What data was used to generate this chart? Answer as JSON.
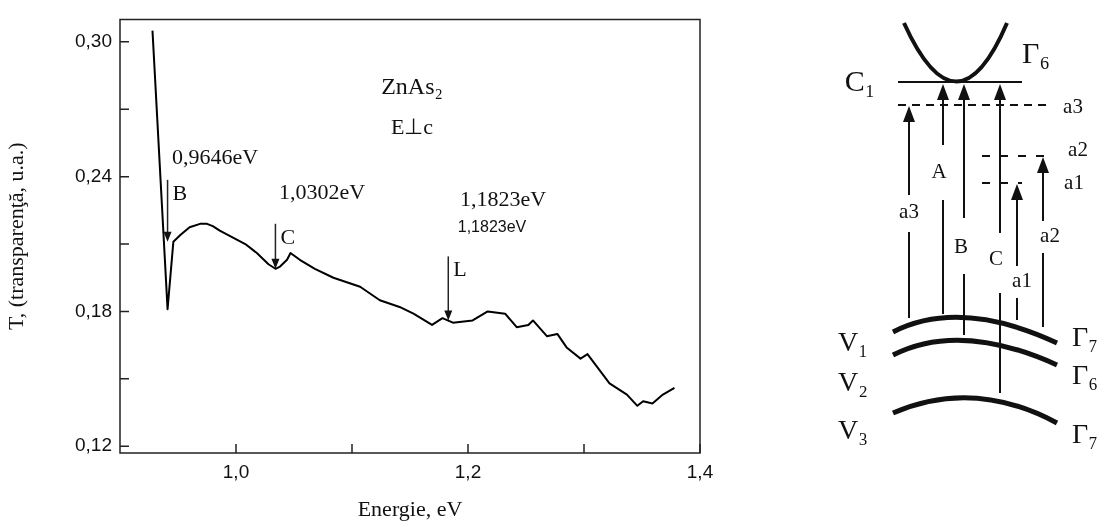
{
  "chart_data": {
    "type": "line",
    "xlabel": "Energie, eV",
    "ylabel": "T, (transparenţă, u.a.)",
    "x": [
      0.928,
      0.941,
      0.946,
      0.952,
      0.96,
      0.969,
      0.975,
      0.98,
      0.986,
      0.997,
      1.008,
      1.018,
      1.028,
      1.034,
      1.038,
      1.044,
      1.047,
      1.055,
      1.068,
      1.084,
      1.107,
      1.124,
      1.141,
      1.153,
      1.169,
      1.178,
      1.187,
      1.204,
      1.217,
      1.232,
      1.242,
      1.252,
      1.256,
      1.268,
      1.277,
      1.285,
      1.297,
      1.303,
      1.322,
      1.337,
      1.346,
      1.351,
      1.359,
      1.368,
      1.378
    ],
    "series": [
      {
        "color": "#000000",
        "values": [
          0.305,
          0.181,
          0.211,
          0.214,
          0.2175,
          0.219,
          0.219,
          0.218,
          0.216,
          0.213,
          0.21,
          0.206,
          0.201,
          0.199,
          0.2,
          0.203,
          0.206,
          0.203,
          0.199,
          0.195,
          0.191,
          0.185,
          0.182,
          0.179,
          0.174,
          0.177,
          0.175,
          0.176,
          0.18,
          0.179,
          0.173,
          0.174,
          0.176,
          0.169,
          0.17,
          0.164,
          0.159,
          0.161,
          0.148,
          0.143,
          0.138,
          0.14,
          0.139,
          0.143,
          0.146
        ]
      }
    ],
    "xlim": [
      0.9,
      1.4
    ],
    "ylim": [
      0.117,
      0.31
    ],
    "xticks": [
      {
        "value": 1.0,
        "label": "1,0"
      },
      {
        "value": 1.1,
        "label": null
      },
      {
        "value": 1.2,
        "label": "1,2"
      },
      {
        "value": 1.3,
        "label": null
      },
      {
        "value": 1.4,
        "label": "1,4"
      }
    ],
    "yticks": [
      {
        "value": 0.12,
        "label": "0,12"
      },
      {
        "value": 0.15,
        "label": null
      },
      {
        "value": 0.18,
        "label": "0,18"
      },
      {
        "value": 0.21,
        "label": null
      },
      {
        "value": 0.24,
        "label": "0,24"
      },
      {
        "value": 0.27,
        "label": null
      },
      {
        "value": 0.3,
        "label": "0,30"
      }
    ],
    "annotations": [
      "ZnAs₂",
      "E⊥c",
      "0,9646eV",
      "1,0302eV",
      "1,1823eV",
      "1,1823eV",
      "C₁",
      "Γ₆",
      "a3",
      "a2",
      "a1",
      "A",
      "a3",
      "B",
      "C",
      "a1",
      "a2",
      "V₁",
      "V₂",
      "V₃",
      "Γ₇",
      "Γ₆",
      "Γ₇",
      {
        "text": "B",
        "x": 0.941,
        "y": 0.211
      },
      {
        "text": "C",
        "x": 1.034,
        "y": 0.199
      },
      {
        "text": "L",
        "x": 1.183,
        "y": 0.176
      }
    ]
  }
}
